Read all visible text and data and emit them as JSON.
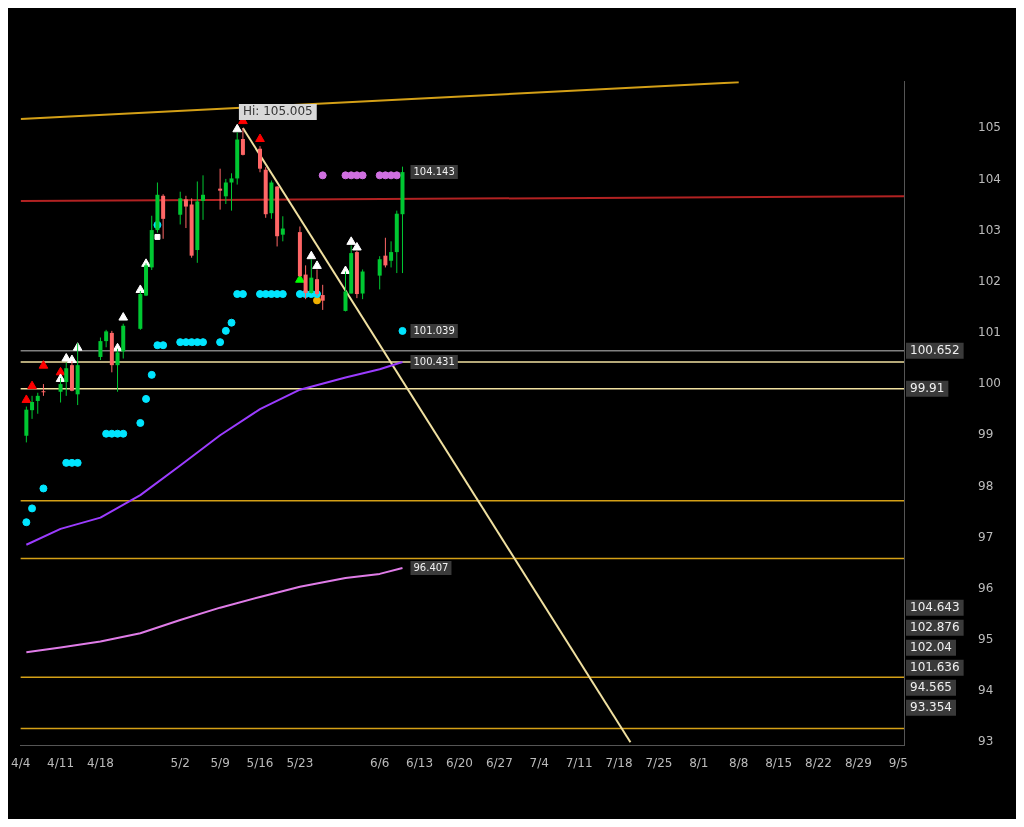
{
  "chart_data": {
    "type": "candlestick",
    "x": [
      "--04-05",
      "--04-06",
      "--04-07",
      "--04-08",
      "--04-11",
      "--04-12",
      "--04-13",
      "--04-14",
      "--04-18",
      "--04-19",
      "--04-20",
      "--04-21",
      "--04-22",
      "--04-25",
      "--04-26",
      "--04-27",
      "--04-28",
      "--04-29",
      "--05-02",
      "--05-03",
      "--05-04",
      "--05-05",
      "--05-06",
      "--05-09",
      "--05-10",
      "--05-11",
      "--05-12",
      "--05-13",
      "--05-16",
      "--05-17",
      "--05-18",
      "--05-19",
      "--05-20",
      "--05-23",
      "--05-24",
      "--05-25",
      "--05-26",
      "--05-27",
      "--05-31",
      "--06-01",
      "--06-02",
      "--06-03",
      "--06-06",
      "--06-07",
      "--06-08",
      "--06-09",
      "--06-10"
    ],
    "ohlc": [
      [
        98.99,
        99.56,
        98.86,
        99.5
      ],
      [
        99.49,
        99.77,
        99.32,
        99.65
      ],
      [
        99.67,
        99.83,
        99.42,
        99.77
      ],
      [
        99.86,
        100.0,
        99.77,
        99.85
      ],
      [
        99.85,
        100.12,
        99.64,
        100.0
      ],
      [
        100.04,
        100.42,
        99.77,
        100.31
      ],
      [
        100.37,
        100.45,
        99.86,
        99.87
      ],
      [
        99.8,
        100.8,
        99.59,
        100.37
      ],
      [
        100.53,
        100.91,
        100.47,
        100.84
      ],
      [
        100.84,
        101.06,
        100.72,
        101.03
      ],
      [
        101.0,
        101.04,
        100.23,
        100.37
      ],
      [
        100.37,
        100.69,
        99.85,
        100.62
      ],
      [
        100.64,
        101.18,
        100.5,
        101.14
      ],
      [
        101.08,
        101.82,
        101.06,
        101.76
      ],
      [
        101.73,
        102.36,
        101.72,
        102.32
      ],
      [
        102.28,
        103.29,
        102.23,
        103.01
      ],
      [
        103.01,
        103.94,
        102.96,
        103.7
      ],
      [
        103.68,
        103.71,
        102.84,
        103.23
      ],
      [
        103.31,
        103.76,
        103.12,
        103.63
      ],
      [
        103.61,
        103.68,
        103.05,
        103.47
      ],
      [
        103.51,
        103.63,
        102.47,
        102.51
      ],
      [
        102.62,
        103.96,
        102.37,
        103.57
      ],
      [
        103.58,
        104.08,
        103.21,
        103.7
      ],
      [
        103.82,
        104.21,
        103.41,
        103.78
      ],
      [
        103.67,
        104.01,
        103.52,
        103.94
      ],
      [
        103.94,
        104.12,
        103.39,
        104.02
      ],
      [
        104.02,
        104.92,
        103.9,
        104.78
      ],
      [
        104.79,
        105.005,
        104.47,
        104.48
      ],
      [
        104.6,
        104.65,
        104.14,
        104.21
      ],
      [
        104.19,
        104.24,
        103.25,
        103.32
      ],
      [
        103.34,
        103.98,
        103.23,
        103.94
      ],
      [
        103.86,
        103.87,
        102.69,
        102.89
      ],
      [
        102.92,
        103.28,
        102.79,
        103.04
      ],
      [
        102.97,
        103.08,
        102.09,
        102.11
      ],
      [
        102.14,
        102.32,
        101.66,
        101.78
      ],
      [
        101.78,
        102.44,
        101.77,
        102.08
      ],
      [
        102.05,
        102.24,
        101.72,
        101.76
      ],
      [
        101.74,
        101.94,
        101.45,
        101.63
      ],
      [
        101.43,
        102.2,
        101.42,
        101.81
      ],
      [
        101.77,
        102.71,
        101.77,
        102.56
      ],
      [
        102.58,
        102.61,
        101.68,
        101.76
      ],
      [
        101.77,
        102.24,
        101.66,
        102.2
      ],
      [
        102.12,
        102.5,
        101.85,
        102.44
      ],
      [
        102.51,
        102.86,
        102.28,
        102.32
      ],
      [
        102.41,
        102.79,
        102.28,
        102.58
      ],
      [
        102.58,
        103.39,
        102.17,
        103.33
      ],
      [
        103.32,
        104.25,
        102.17,
        104.143
      ]
    ],
    "colors": [
      "#00c832",
      "#00c832",
      "#00c832",
      "#ff6666",
      "#00c832",
      "#00c832",
      "#ff6666",
      "#00c832",
      "#00c832",
      "#00c832",
      "#ff6666",
      "#00c832",
      "#00c832",
      "#00c832",
      "#00c832",
      "#00c832",
      "#00c832",
      "#ff6666",
      "#00c832",
      "#ff6666",
      "#ff6666",
      "#00c832",
      "#00c832",
      "#ff6666",
      "#00c832",
      "#00c832",
      "#00c832",
      "#ff6666",
      "#ff6666",
      "#ff6666",
      "#00c832",
      "#ff6666",
      "#00c832",
      "#ff6666",
      "#ff6666",
      "#00c832",
      "#ff6666",
      "#ff6666",
      "#00c832",
      "#00c832",
      "#ff6666",
      "#00c832",
      "#00c832",
      "#ff6666",
      "#00c832",
      "#00c832",
      "#00c832"
    ],
    "series": [
      {
        "type": "line",
        "color": "#9b3cff",
        "x": [
          "--04-05",
          "--04-11",
          "--04-18",
          "--04-25",
          "--05-02",
          "--05-09",
          "--05-16",
          "--05-23",
          "--05-31",
          "--06-06",
          "--06-10"
        ],
        "values": [
          96.86,
          97.17,
          97.39,
          97.83,
          98.41,
          99.0,
          99.51,
          99.89,
          100.13,
          100.29,
          100.431
        ]
      },
      {
        "type": "line",
        "color": "#e07ce8",
        "x": [
          "--04-05",
          "--04-11",
          "--04-18",
          "--04-25",
          "--05-02",
          "--05-09",
          "--05-16",
          "--05-23",
          "--05-31",
          "--06-06",
          "--06-10"
        ],
        "values": [
          94.76,
          94.85,
          94.97,
          95.13,
          95.39,
          95.63,
          95.84,
          96.04,
          96.21,
          96.29,
          96.407
        ]
      },
      {
        "type": "line",
        "color": "#f0e0a0",
        "x": [
          "--05-13",
          "--07-20"
        ],
        "values": [
          105.005,
          93.0
        ]
      },
      {
        "type": "line",
        "color": "#d4a017",
        "x": [
          "--04-04",
          "--08-08"
        ],
        "values": [
          105.18,
          105.9
        ]
      },
      {
        "type": "line",
        "color": "#b22222",
        "x": [
          "--04-04",
          "--09-06"
        ],
        "values": [
          103.58,
          103.67
        ]
      },
      {
        "type": "scatter",
        "marker": "circle",
        "color": "#00e5ff",
        "x": [
          "--04-05",
          "--04-06",
          "--04-08",
          "--04-12",
          "--04-13",
          "--04-14",
          "--04-19",
          "--04-20",
          "--04-21",
          "--04-22",
          "--04-25",
          "--04-26",
          "--04-27",
          "--04-28",
          "--04-29",
          "--05-02",
          "--05-03",
          "--05-04",
          "--05-05",
          "--05-06",
          "--05-09",
          "--05-10",
          "--05-11",
          "--05-12",
          "--05-13",
          "--05-16",
          "--05-17",
          "--05-18",
          "--05-19",
          "--05-20",
          "--05-23",
          "--05-24",
          "--05-25",
          "--05-26",
          "--06-10"
        ],
        "values": [
          97.3,
          97.57,
          97.96,
          98.46,
          98.46,
          98.46,
          99.03,
          99.03,
          99.03,
          99.03,
          99.24,
          99.71,
          100.18,
          100.76,
          100.76,
          100.82,
          100.82,
          100.82,
          100.82,
          100.82,
          100.82,
          101.04,
          101.2,
          101.76,
          101.76,
          101.76,
          101.76,
          101.76,
          101.76,
          101.76,
          101.76,
          101.76,
          101.76,
          101.76,
          101.039
        ]
      },
      {
        "type": "scatter",
        "marker": "circle",
        "color": "#d070e0",
        "x": [
          "--05-27",
          "--05-31",
          "--06-01",
          "--06-02",
          "--06-03",
          "--06-06",
          "--06-07",
          "--06-08",
          "--06-09"
        ],
        "values": [
          104.08,
          104.08,
          104.08,
          104.08,
          104.08,
          104.08,
          104.08,
          104.08,
          104.08
        ]
      },
      {
        "type": "scatter",
        "marker": "triangle",
        "color": "#ffffff",
        "x": [
          "--04-11",
          "--04-12",
          "--04-13",
          "--04-14",
          "--04-21",
          "--04-22",
          "--04-25",
          "--04-26",
          "--05-12",
          "--05-25",
          "--05-26",
          "--05-31",
          "--06-01",
          "--06-02"
        ],
        "values": [
          100.1,
          100.5,
          100.47,
          100.71,
          100.7,
          101.3,
          101.84,
          102.35,
          104.98,
          102.5,
          102.31,
          102.21,
          102.78,
          102.67
        ]
      },
      {
        "type": "scatter",
        "marker": "triangle",
        "color": "#ff0000",
        "x": [
          "--04-05",
          "--04-06",
          "--04-08",
          "--04-11",
          "--05-13",
          "--05-16"
        ],
        "values": [
          99.69,
          99.96,
          100.36,
          100.23,
          105.14,
          104.79
        ]
      },
      {
        "type": "scatter",
        "marker": "triangle",
        "color": "#00ff00",
        "x": [
          "--05-23"
        ],
        "values": [
          102.04
        ]
      },
      {
        "type": "scatter",
        "marker": "square",
        "color": "#ffffff",
        "x": [
          "--04-28"
        ],
        "values": [
          102.876
        ]
      },
      {
        "type": "scatter",
        "marker": "circle",
        "color": "#00e5ff",
        "x": [
          "--04-28"
        ],
        "values": [
          103.11
        ]
      },
      {
        "type": "scatter",
        "marker": "circle",
        "color": "#f0b000",
        "x": [
          "--05-26"
        ],
        "values": [
          101.636
        ]
      }
    ],
    "ref_lines": [
      {
        "axis": "y",
        "value": 100.652,
        "color": "#808080",
        "label": "100.652"
      },
      {
        "axis": "y",
        "value": 100.431,
        "color": "#f0e0a0"
      },
      {
        "axis": "y",
        "value": 99.91,
        "color": "#f0e0a0",
        "label": "99.91"
      },
      {
        "axis": "y",
        "value": 97.72,
        "color": "#d4a017"
      },
      {
        "axis": "y",
        "value": 96.59,
        "color": "#d4a017"
      },
      {
        "axis": "y",
        "value": 94.27,
        "color": "#d4a017"
      },
      {
        "axis": "y",
        "value": 93.27,
        "color": "#d4a017"
      }
    ],
    "annotations": [
      {
        "text": "Hi: 105.005",
        "x": "--05-13",
        "y": 105.005
      },
      {
        "text": "104.143",
        "x": "--06-10",
        "y": 104.143
      },
      {
        "text": "101.039",
        "x": "--06-10",
        "y": 101.039
      },
      {
        "text": "100.431",
        "x": "--06-10",
        "y": 100.431
      },
      {
        "text": "96.407",
        "x": "--06-10",
        "y": 96.407
      },
      "104.643",
      "102.876",
      "102.04",
      "101.636",
      "94.565",
      "93.354"
    ],
    "xlim": [
      "--04-04",
      "--09-06"
    ],
    "xticks": [
      {
        "value": "--04-04",
        "label": "4/4"
      },
      {
        "value": "--04-11",
        "label": "4/11"
      },
      {
        "value": "--04-18",
        "label": "4/18"
      },
      {
        "value": "--05-02",
        "label": "5/2"
      },
      {
        "value": "--05-09",
        "label": "5/9"
      },
      {
        "value": "--05-16",
        "label": "5/16"
      },
      {
        "value": "--05-23",
        "label": "5/23"
      },
      {
        "value": "--06-06",
        "label": "6/6"
      },
      {
        "value": "--06-13",
        "label": "6/13"
      },
      {
        "value": "--06-20",
        "label": "6/20"
      },
      {
        "value": "--06-27",
        "label": "6/27"
      },
      {
        "value": "--07-04",
        "label": "7/4"
      },
      {
        "value": "--07-11",
        "label": "7/11"
      },
      {
        "value": "--07-18",
        "label": "7/18"
      },
      {
        "value": "--07-25",
        "label": "7/25"
      },
      {
        "value": "--08-01",
        "label": "8/1"
      },
      {
        "value": "--08-08",
        "label": "8/8"
      },
      {
        "value": "--08-15",
        "label": "8/15"
      },
      {
        "value": "--08-22",
        "label": "8/22"
      },
      {
        "value": "--08-29",
        "label": "8/29"
      },
      {
        "value": "--09-05",
        "label": "9/5"
      }
    ],
    "ylim": [
      92.93,
      105.92
    ],
    "yticks": [
      93,
      94,
      95,
      96,
      97,
      98,
      99,
      100,
      101,
      102,
      103,
      104,
      105
    ],
    "grid": false
  }
}
